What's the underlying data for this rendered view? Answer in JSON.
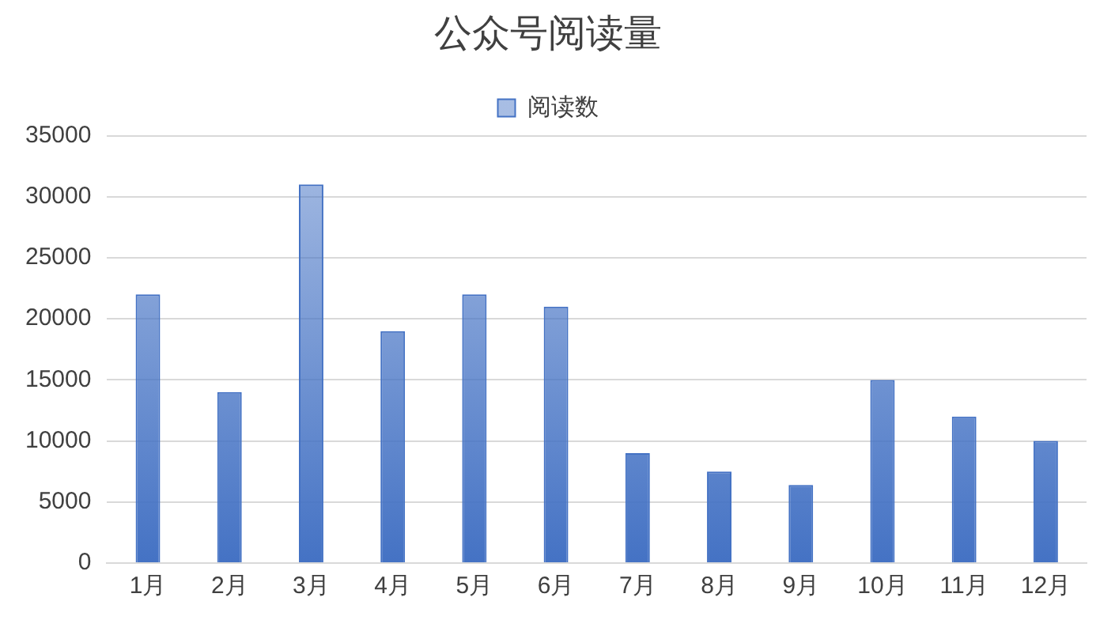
{
  "chart_data": {
    "type": "bar",
    "title": "公众号阅读量",
    "categories": [
      "1月",
      "2月",
      "3月",
      "4月",
      "5月",
      "6月",
      "7月",
      "8月",
      "9月",
      "10月",
      "11月",
      "12月"
    ],
    "series": [
      {
        "name": "阅读数",
        "color": "#4472c4",
        "values": [
          22000,
          14000,
          31000,
          19000,
          22000,
          21000,
          9000,
          7500,
          6400,
          15000,
          12000,
          10000
        ]
      }
    ],
    "ylim": [
      0,
      35000
    ],
    "yticks": [
      0,
      5000,
      10000,
      15000,
      20000,
      25000,
      30000,
      35000
    ],
    "grid": "y",
    "legend": "top"
  }
}
